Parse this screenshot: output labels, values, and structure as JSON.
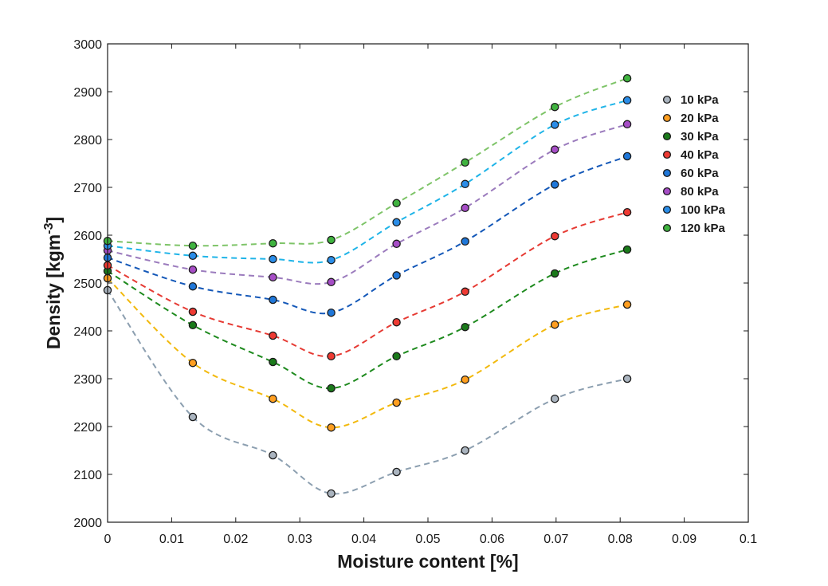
{
  "chart_data": {
    "type": "line",
    "xlabel": "Moisture content [%]",
    "ylabel_main": "Density [kgm",
    "ylabel_sup": "-3",
    "ylabel_close": "]",
    "xlim": [
      0,
      0.1
    ],
    "ylim": [
      2000,
      3000
    ],
    "x_ticks": [
      0,
      0.01,
      0.02,
      0.03,
      0.04,
      0.05,
      0.06,
      0.07,
      0.08,
      0.09,
      0.1
    ],
    "x_tick_labels": [
      "0",
      "0.01",
      "0.02",
      "0.03",
      "0.04",
      "0.05",
      "0.06",
      "0.07",
      "0.08",
      "0.09",
      "0.1"
    ],
    "y_ticks": [
      2000,
      2100,
      2200,
      2300,
      2400,
      2500,
      2600,
      2700,
      2800,
      2900,
      3000
    ],
    "y_tick_labels": [
      "2000",
      "2100",
      "2200",
      "2300",
      "2400",
      "2500",
      "2600",
      "2700",
      "2800",
      "2900",
      "3000"
    ],
    "grid": false,
    "legend_position": "right, outside plot",
    "x": [
      0.0,
      0.0133,
      0.0258,
      0.0349,
      0.0451,
      0.0558,
      0.0698,
      0.0811
    ],
    "series": [
      {
        "name": "10 kPa",
        "line_color": "#8c9fb0",
        "marker_color": "#aab4bf",
        "values": [
          2485,
          2220,
          2140,
          2060,
          2105,
          2150,
          2258,
          2300
        ]
      },
      {
        "name": "20 kPa",
        "line_color": "#f2b90d",
        "marker_color": "#ff9e1f",
        "values": [
          2510,
          2333,
          2258,
          2198,
          2250,
          2298,
          2413,
          2455
        ]
      },
      {
        "name": "30 kPa",
        "line_color": "#1e8a1e",
        "marker_color": "#1a7a1a",
        "values": [
          2525,
          2412,
          2335,
          2280,
          2347,
          2408,
          2520,
          2570
        ]
      },
      {
        "name": "40 kPa",
        "line_color": "#e63a33",
        "marker_color": "#ee3a33",
        "values": [
          2537,
          2440,
          2390,
          2347,
          2418,
          2482,
          2598,
          2648
        ]
      },
      {
        "name": "60 kPa",
        "line_color": "#1458b8",
        "marker_color": "#1f77d9",
        "values": [
          2553,
          2493,
          2465,
          2438,
          2516,
          2587,
          2706,
          2765
        ]
      },
      {
        "name": "80 kPa",
        "line_color": "#9b7bbd",
        "marker_color": "#a64dc6",
        "values": [
          2568,
          2528,
          2512,
          2502,
          2582,
          2657,
          2779,
          2832
        ]
      },
      {
        "name": "100 kPa",
        "line_color": "#1fb4e8",
        "marker_color": "#2a8de8",
        "values": [
          2578,
          2557,
          2550,
          2548,
          2627,
          2707,
          2831,
          2882
        ]
      },
      {
        "name": "120 kPa",
        "line_color": "#7ec468",
        "marker_color": "#3fb33f",
        "values": [
          2588,
          2578,
          2583,
          2590,
          2667,
          2752,
          2868,
          2928
        ]
      }
    ]
  }
}
